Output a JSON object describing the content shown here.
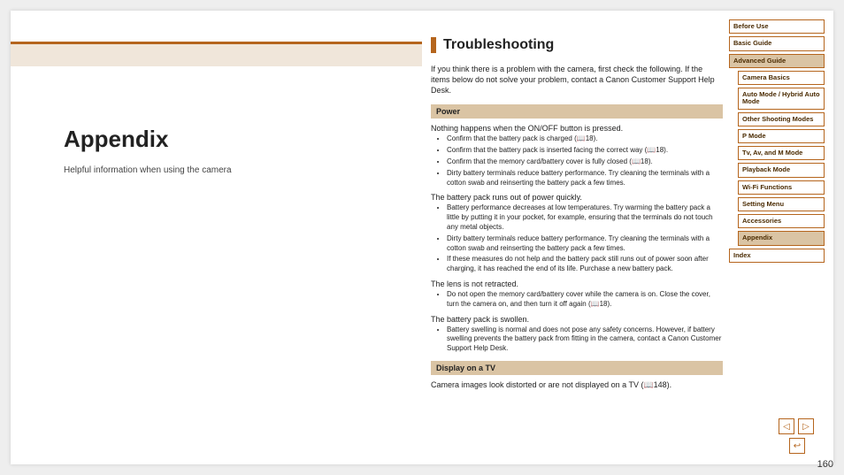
{
  "left": {
    "title": "Appendix",
    "subtitle": "Helpful information when using the camera"
  },
  "main": {
    "title": "Troubleshooting",
    "intro": "If you think there is a problem with the camera, first check the following. If the items below do not solve your problem, contact a Canon Customer Support Help Desk.",
    "sections": [
      {
        "heading": "Power",
        "issues": [
          {
            "text": "Nothing happens when the ON/OFF button is pressed.",
            "bullets": [
              "Confirm that the battery pack is charged (📖18).",
              "Confirm that the battery pack is inserted facing the correct way (📖18).",
              "Confirm that the memory card/battery cover is fully closed (📖18).",
              "Dirty battery terminals reduce battery performance. Try cleaning the terminals with a cotton swab and reinserting the battery pack a few times."
            ]
          },
          {
            "text": "The battery pack runs out of power quickly.",
            "bullets": [
              "Battery performance decreases at low temperatures. Try warming the battery pack a little by putting it in your pocket, for example, ensuring that the terminals do not touch any metal objects.",
              "Dirty battery terminals reduce battery performance. Try cleaning the terminals with a cotton swab and reinserting the battery pack a few times.",
              "If these measures do not help and the battery pack still runs out of power soon after charging, it has reached the end of its life. Purchase a new battery pack."
            ]
          },
          {
            "text": "The lens is not retracted.",
            "bullets": [
              "Do not open the memory card/battery cover while the camera is on. Close the cover, turn the camera on, and then turn it off again (📖18)."
            ]
          },
          {
            "text": "The battery pack is swollen.",
            "bullets": [
              "Battery swelling is normal and does not pose any safety concerns. However, if battery swelling prevents the battery pack from fitting in the camera, contact a Canon Customer Support Help Desk."
            ]
          }
        ]
      },
      {
        "heading": "Display on a TV",
        "issues": [
          {
            "text": "Camera images look distorted or are not displayed on a TV (📖148).",
            "bullets": []
          }
        ]
      }
    ]
  },
  "nav": {
    "items": [
      {
        "label": "Before Use",
        "sub": false,
        "active": false
      },
      {
        "label": "Basic Guide",
        "sub": false,
        "active": false
      },
      {
        "label": "Advanced Guide",
        "sub": false,
        "active": true
      },
      {
        "label": "Camera Basics",
        "sub": true,
        "active": false
      },
      {
        "label": "Auto Mode / Hybrid Auto Mode",
        "sub": true,
        "active": false
      },
      {
        "label": "Other Shooting Modes",
        "sub": true,
        "active": false
      },
      {
        "label": "P Mode",
        "sub": true,
        "active": false
      },
      {
        "label": "Tv, Av, and M Mode",
        "sub": true,
        "active": false
      },
      {
        "label": "Playback Mode",
        "sub": true,
        "active": false
      },
      {
        "label": "Wi-Fi Functions",
        "sub": true,
        "active": false
      },
      {
        "label": "Setting Menu",
        "sub": true,
        "active": false
      },
      {
        "label": "Accessories",
        "sub": true,
        "active": false
      },
      {
        "label": "Appendix",
        "sub": true,
        "active": true
      },
      {
        "label": "Index",
        "sub": false,
        "active": false
      }
    ]
  },
  "pageNumber": "160",
  "controls": {
    "prev": "◁",
    "next": "▷",
    "return": "↩"
  },
  "style": {
    "accent": "#b5651d",
    "band_bg": "#f0e6da",
    "section_bg": "#dac4a4",
    "page_bg": "#ffffff",
    "body_bg": "#eeeeee",
    "title_fontsize": 26,
    "h2_fontsize": 16,
    "body_fontsize": 9,
    "bullet_fontsize": 8,
    "nav_fontsize": 7.5
  }
}
